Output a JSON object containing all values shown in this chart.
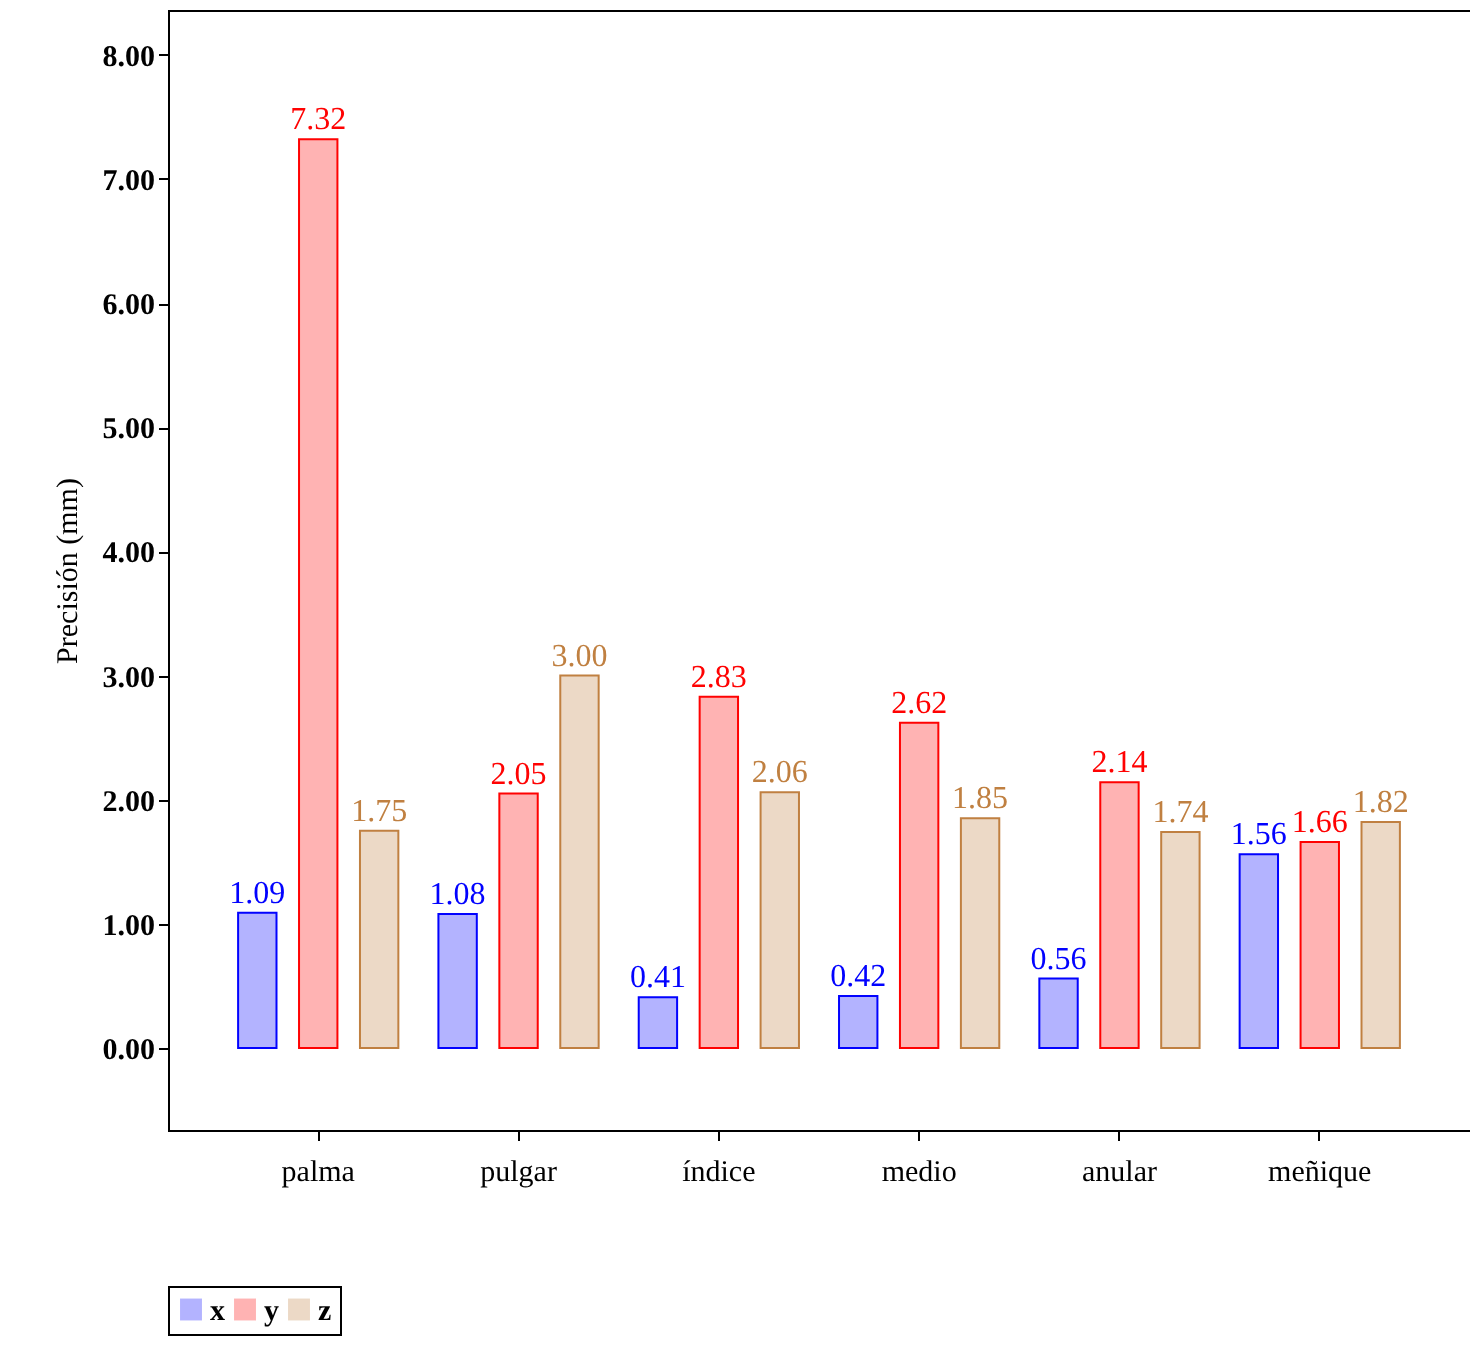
{
  "chart_data": {
    "type": "bar",
    "ylabel": "Precisión (mm)",
    "categories": [
      "palma",
      "pulgar",
      "índice",
      "medio",
      "anular",
      "meñique"
    ],
    "series": [
      {
        "name": "x",
        "color": "#b3b3ff",
        "values": [
          1.09,
          1.08,
          0.41,
          0.42,
          0.56,
          1.56
        ],
        "value_labels": [
          "1.09",
          "1.08",
          "0.41",
          "0.42",
          "0.56",
          "1.56"
        ]
      },
      {
        "name": "y",
        "color": "#ffb3b3",
        "values": [
          7.32,
          2.05,
          2.83,
          2.62,
          2.14,
          1.66
        ],
        "value_labels": [
          "7.32",
          "2.05",
          "2.83",
          "2.62",
          "2.14",
          "1.66"
        ]
      },
      {
        "name": "z",
        "color": "#ecd9c6",
        "values": [
          1.75,
          3.0,
          2.06,
          1.85,
          1.74,
          1.82
        ],
        "value_labels": [
          "1.75",
          "3.00",
          "2.06",
          "1.85",
          "1.74",
          "1.82"
        ]
      }
    ],
    "ylim": [
      -0.66,
      8.36
    ],
    "yticks": [
      {
        "value": 0,
        "label": "0.00"
      },
      {
        "value": 1,
        "label": "1.00"
      },
      {
        "value": 2,
        "label": "2.00"
      },
      {
        "value": 3,
        "label": "3.00"
      },
      {
        "value": 4,
        "label": "4.00"
      },
      {
        "value": 5,
        "label": "5.00"
      },
      {
        "value": 6,
        "label": "6.00"
      },
      {
        "value": 7,
        "label": "7.00"
      },
      {
        "value": 8,
        "label": "8.00"
      }
    ],
    "grid": false,
    "legend": "bottom"
  }
}
